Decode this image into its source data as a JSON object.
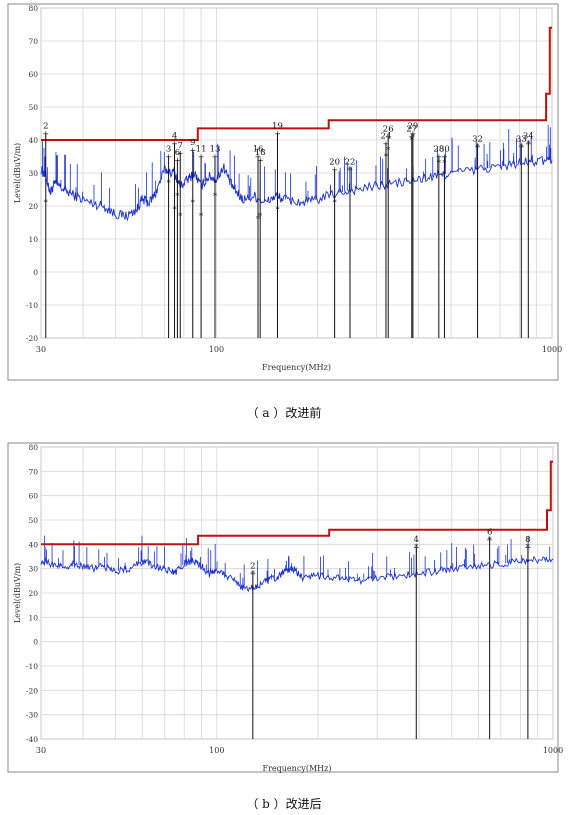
{
  "captions": {
    "a": "（ a ）改进前",
    "b": "（ b ）改进后"
  },
  "colors": {
    "limit": "#c01010",
    "trace": "#1a2fd0",
    "marker": "#111111",
    "grid": "#d6d6d6",
    "frame": "#888888"
  },
  "chart_data": [
    {
      "type": "line",
      "panel": "a",
      "xlabel": "Frequency(MHz)",
      "ylabel": "Level(dBuV/m)",
      "xscale": "log",
      "xlim": [
        30,
        1000
      ],
      "ylim": [
        -20,
        80
      ],
      "xticks": [
        30,
        100,
        1000
      ],
      "yticks": [
        -20,
        -10,
        0,
        10,
        20,
        30,
        40,
        50,
        60,
        70,
        80
      ],
      "grid": true,
      "series": [
        {
          "kind": "limit",
          "x": [
            30,
            88,
            88,
            216,
            216,
            960,
            960,
            985,
            985,
            1000
          ],
          "y": [
            40,
            40,
            43.5,
            43.5,
            46,
            46,
            54,
            54,
            74,
            74
          ]
        },
        {
          "kind": "emission",
          "x": [
            30,
            31,
            32,
            33,
            35,
            38,
            42,
            46,
            50,
            54,
            58,
            60,
            63,
            66,
            70,
            75,
            78,
            82,
            86,
            90,
            95,
            100,
            105,
            110,
            115,
            120,
            130,
            140,
            150,
            160,
            180,
            200,
            230,
            260,
            300,
            350,
            400,
            450,
            500,
            600,
            700,
            800,
            900,
            1000
          ],
          "y": [
            31,
            29,
            24,
            27,
            25,
            23,
            21,
            20,
            17.5,
            17,
            19,
            22,
            21,
            24,
            31,
            30,
            26,
            28,
            30,
            26,
            29,
            28,
            32,
            27,
            24,
            22,
            23,
            21,
            23,
            22,
            21,
            22,
            24,
            25,
            26,
            27,
            28,
            29,
            30,
            31,
            32,
            33,
            33.5,
            34
          ]
        }
      ],
      "markers": [
        {
          "label": "2",
          "x": 31,
          "peak": 42,
          "qp": 21
        },
        {
          "label": "3",
          "x": 72,
          "peak": 35,
          "qp": 27
        },
        {
          "label": "4",
          "x": 75,
          "peak": 39,
          "qp": 19
        },
        {
          "label": "6",
          "x": 76.5,
          "peak": 34,
          "qp": 23
        },
        {
          "label": "7",
          "x": 78,
          "peak": 36,
          "qp": 17
        },
        {
          "label": "9",
          "x": 85,
          "peak": 37,
          "qp": 21
        },
        {
          "label": "11",
          "x": 90,
          "peak": 35,
          "qp": 17
        },
        {
          "label": "13",
          "x": 99,
          "peak": 35,
          "qp": 23
        },
        {
          "label": "16",
          "x": 133,
          "peak": 35,
          "qp": 16
        },
        {
          "label": "18",
          "x": 135,
          "peak": 34,
          "qp": 17
        },
        {
          "label": "19",
          "x": 152,
          "peak": 42,
          "qp": 19
        },
        {
          "label": "20",
          "x": 225,
          "peak": 31,
          "qp": 21
        },
        {
          "label": "22",
          "x": 250,
          "peak": 31,
          "qp": 31
        },
        {
          "label": "24",
          "x": 320,
          "peak": 39,
          "qp": 35
        },
        {
          "label": "26",
          "x": 325,
          "peak": 41,
          "qp": 37
        },
        {
          "label": "27",
          "x": 382,
          "peak": 41,
          "qp": 40
        },
        {
          "label": "29",
          "x": 385,
          "peak": 42,
          "qp": 41
        },
        {
          "label": "28",
          "x": 460,
          "peak": 35,
          "qp": 33
        },
        {
          "label": "30",
          "x": 478,
          "peak": 35,
          "qp": 33
        },
        {
          "label": "32",
          "x": 600,
          "peak": 38,
          "qp": 38
        },
        {
          "label": "33",
          "x": 810,
          "peak": 38,
          "qp": 38
        },
        {
          "label": "34",
          "x": 850,
          "peak": 39,
          "qp": 39
        }
      ]
    },
    {
      "type": "line",
      "panel": "b",
      "xlabel": "Frequency(MHz)",
      "ylabel": "Level(dBuV/m)",
      "xscale": "log",
      "xlim": [
        30,
        1000
      ],
      "ylim": [
        -40,
        80
      ],
      "xticks": [
        30,
        100,
        1000
      ],
      "yticks": [
        -40,
        -30,
        -20,
        -10,
        0,
        10,
        20,
        30,
        40,
        50,
        60,
        70,
        80
      ],
      "grid": true,
      "series": [
        {
          "kind": "limit",
          "x": [
            30,
            88,
            88,
            216,
            216,
            960,
            960,
            985,
            985,
            1000
          ],
          "y": [
            40,
            40,
            43.5,
            43.5,
            46,
            46,
            54,
            54,
            74,
            74
          ]
        },
        {
          "kind": "emission",
          "x": [
            30,
            32,
            35,
            38,
            42,
            46,
            50,
            55,
            60,
            65,
            70,
            75,
            80,
            85,
            90,
            95,
            100,
            110,
            120,
            130,
            140,
            150,
            160,
            170,
            180,
            200,
            230,
            260,
            300,
            350,
            400,
            450,
            500,
            600,
            700,
            800,
            900,
            1000
          ],
          "y": [
            33,
            32,
            31,
            32,
            30,
            31,
            29,
            30,
            33,
            31,
            30,
            28,
            32,
            33,
            31,
            28,
            30,
            26,
            22,
            22,
            25,
            26,
            29,
            30,
            26,
            27,
            26,
            25,
            26,
            27,
            28,
            29,
            30,
            31,
            32,
            33,
            33.5,
            34
          ]
        }
      ],
      "markers": [
        {
          "label": "2",
          "x": 128,
          "peak": 28,
          "qp": 28
        },
        {
          "label": "4",
          "x": 392,
          "peak": 39,
          "qp": 39
        },
        {
          "label": "6",
          "x": 648,
          "peak": 42,
          "qp": 42
        },
        {
          "label": "8",
          "x": 842,
          "peak": 39,
          "qp": 39
        }
      ]
    }
  ]
}
